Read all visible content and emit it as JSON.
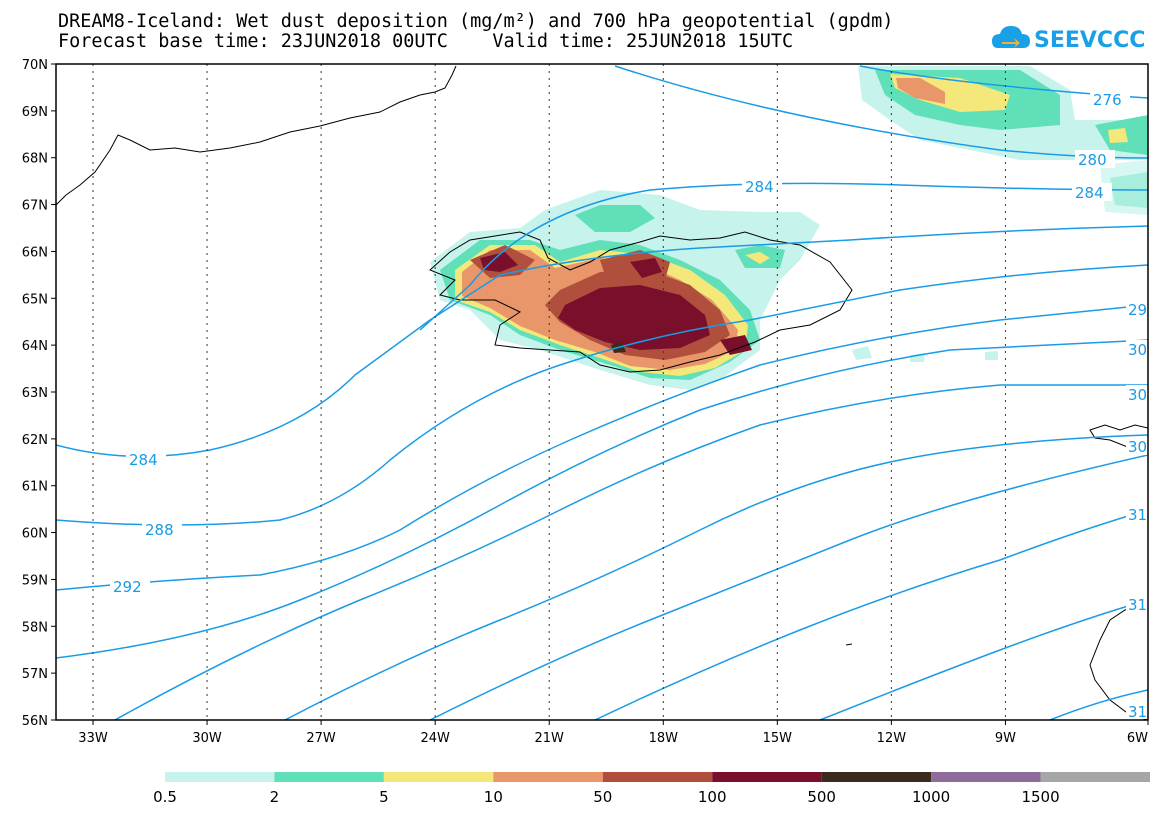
{
  "title": {
    "line1": "DREAM8-Iceland: Wet dust deposition (mg/m²) and 700 hPa geopotential (gpdm)",
    "line2": "Forecast base time: 23JUN2018 00UTC    Valid time: 25JUN2018 15UTC"
  },
  "logo": {
    "text": "SEEVCCC",
    "icon": "cloud-icon"
  },
  "map": {
    "lat_labels": [
      "70N",
      "69N",
      "68N",
      "67N",
      "66N",
      "65N",
      "64N",
      "63N",
      "62N",
      "61N",
      "60N",
      "59N",
      "58N",
      "57N",
      "56N"
    ],
    "lon_labels": [
      "33W",
      "30W",
      "27W",
      "24W",
      "21W",
      "18W",
      "15W",
      "12W",
      "9W",
      "6W"
    ],
    "contour_labels": [
      "276",
      "280",
      "284",
      "284",
      "284",
      "288",
      "292",
      "29",
      "30",
      "30",
      "30",
      "31",
      "31",
      "31"
    ]
  },
  "legend": {
    "colors": [
      "#c6f3ec",
      "#5fe0b8",
      "#f5e87a",
      "#e9966a",
      "#b0503c",
      "#7a0f2c",
      "#3b2a1e",
      "#8f6b9a",
      "#a6a6a6"
    ],
    "labels": [
      "0.5",
      "2",
      "5",
      "10",
      "50",
      "100",
      "500",
      "1000",
      "1500"
    ]
  }
}
